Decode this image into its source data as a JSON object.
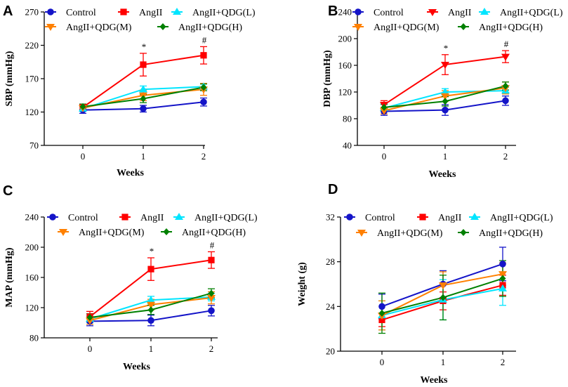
{
  "chart_data": [
    {
      "type": "line",
      "panel": "A",
      "xlabel": "Weeks",
      "ylabel": "SBP (mmHg)",
      "x": [
        0,
        1,
        2
      ],
      "xticks": [
        "0",
        "1",
        "2"
      ],
      "ylim": [
        70,
        270
      ],
      "yticks": [
        70,
        120,
        170,
        220,
        270
      ],
      "series": [
        {
          "name": "Control",
          "marker": "circle",
          "color": "#1414c8",
          "values": [
            123,
            125,
            135
          ],
          "errors": [
            5,
            5,
            6
          ]
        },
        {
          "name": "AngII",
          "marker": "square",
          "color": "#ff0000",
          "values": [
            127,
            191,
            205
          ],
          "errors": [
            4,
            17,
            13
          ]
        },
        {
          "name": "AngII+QDG(L)",
          "marker": "triangle-up",
          "color": "#00e5ff",
          "values": [
            125,
            154,
            158
          ],
          "errors": [
            4,
            5,
            4
          ]
        },
        {
          "name": "AngII+QDG(M)",
          "marker": "triangle-down",
          "color": "#ff8000",
          "values": [
            126,
            145,
            154
          ],
          "errors": [
            4,
            8,
            9
          ]
        },
        {
          "name": "AngII+QDG(H)",
          "marker": "diamond",
          "color": "#008000",
          "values": [
            128,
            140,
            157
          ],
          "errors": [
            4,
            6,
            5
          ]
        }
      ],
      "annotations": [
        {
          "x": 1,
          "text": "*",
          "series": "AngII"
        },
        {
          "x": 2,
          "text": "#",
          "series": "AngII"
        }
      ]
    },
    {
      "type": "line",
      "panel": "B",
      "xlabel": "Weeks",
      "ylabel": "DBP (mmHg)",
      "x": [
        0,
        1,
        2
      ],
      "xticks": [
        "0",
        "1",
        "2"
      ],
      "ylim": [
        40,
        240
      ],
      "yticks": [
        40,
        80,
        120,
        160,
        200,
        240
      ],
      "series": [
        {
          "name": "Control",
          "marker": "circle",
          "color": "#1414c8",
          "values": [
            91,
            93,
            107
          ],
          "errors": [
            6,
            8,
            7
          ]
        },
        {
          "name": "AngII",
          "marker": "triangle-down",
          "color": "#ff0000",
          "values": [
            101,
            161,
            173
          ],
          "errors": [
            6,
            15,
            9
          ]
        },
        {
          "name": "AngII+QDG(L)",
          "marker": "triangle-up",
          "color": "#00e5ff",
          "values": [
            96,
            120,
            122
          ],
          "errors": [
            5,
            5,
            5
          ]
        },
        {
          "name": "AngII+QDG(M)",
          "marker": "triangle-down",
          "color": "#ff8000",
          "values": [
            92,
            114,
            126
          ],
          "errors": [
            5,
            8,
            9
          ]
        },
        {
          "name": "AngII+QDG(H)",
          "marker": "diamond",
          "color": "#008000",
          "values": [
            97,
            106,
            129
          ],
          "errors": [
            5,
            7,
            6
          ]
        }
      ],
      "annotations": [
        {
          "x": 1,
          "text": "*",
          "series": "AngII"
        },
        {
          "x": 2,
          "text": "#",
          "series": "AngII"
        }
      ]
    },
    {
      "type": "line",
      "panel": "C",
      "xlabel": "Weeks",
      "ylabel": "MAP (mmHg)",
      "x": [
        0,
        1,
        2
      ],
      "xticks": [
        "0",
        "1",
        "2"
      ],
      "ylim": [
        80,
        240
      ],
      "yticks": [
        80,
        120,
        160,
        200,
        240
      ],
      "series": [
        {
          "name": "Control",
          "marker": "circle",
          "color": "#1414c8",
          "values": [
            102,
            103,
            116
          ],
          "errors": [
            6,
            7,
            7
          ]
        },
        {
          "name": "AngII",
          "marker": "square",
          "color": "#ff0000",
          "values": [
            108,
            171,
            183
          ],
          "errors": [
            7,
            15,
            11
          ]
        },
        {
          "name": "AngII+QDG(L)",
          "marker": "triangle-up",
          "color": "#00e5ff",
          "values": [
            105,
            130,
            134
          ],
          "errors": [
            5,
            5,
            5
          ]
        },
        {
          "name": "AngII+QDG(M)",
          "marker": "triangle-down",
          "color": "#ff8000",
          "values": [
            103,
            124,
            133
          ],
          "errors": [
            5,
            7,
            8
          ]
        },
        {
          "name": "AngII+QDG(H)",
          "marker": "diamond",
          "color": "#008000",
          "values": [
            107,
            117,
            139
          ],
          "errors": [
            5,
            6,
            6
          ]
        }
      ],
      "annotations": [
        {
          "x": 1,
          "text": "*",
          "series": "AngII"
        },
        {
          "x": 2,
          "text": "#",
          "series": "AngII"
        }
      ]
    },
    {
      "type": "line",
      "panel": "D",
      "xlabel": "Weeks",
      "ylabel": "Weight (g)",
      "x": [
        0,
        1,
        2
      ],
      "xticks": [
        "0",
        "1",
        "2"
      ],
      "ylim": [
        20,
        32
      ],
      "yticks": [
        20,
        24,
        28,
        32
      ],
      "series": [
        {
          "name": "Control",
          "marker": "circle",
          "color": "#1414c8",
          "values": [
            24.0,
            26.0,
            27.8
          ],
          "errors": [
            1.1,
            1.2,
            1.5
          ]
        },
        {
          "name": "AngII",
          "marker": "square",
          "color": "#ff0000",
          "values": [
            22.8,
            24.5,
            25.9
          ],
          "errors": [
            0.6,
            0.8,
            0.9
          ]
        },
        {
          "name": "AngII+QDG(L)",
          "marker": "triangle-up",
          "color": "#00e5ff",
          "values": [
            23.2,
            24.6,
            25.6
          ],
          "errors": [
            1.3,
            1.8,
            1.5
          ]
        },
        {
          "name": "AngII+QDG(M)",
          "marker": "triangle-down",
          "color": "#ff8000",
          "values": [
            23.2,
            25.9,
            26.9
          ],
          "errors": [
            1.3,
            1.2,
            1.0
          ]
        },
        {
          "name": "AngII+QDG(H)",
          "marker": "diamond",
          "color": "#008000",
          "values": [
            23.4,
            24.8,
            26.5
          ],
          "errors": [
            1.8,
            2.0,
            1.6
          ]
        }
      ],
      "annotations": []
    }
  ]
}
